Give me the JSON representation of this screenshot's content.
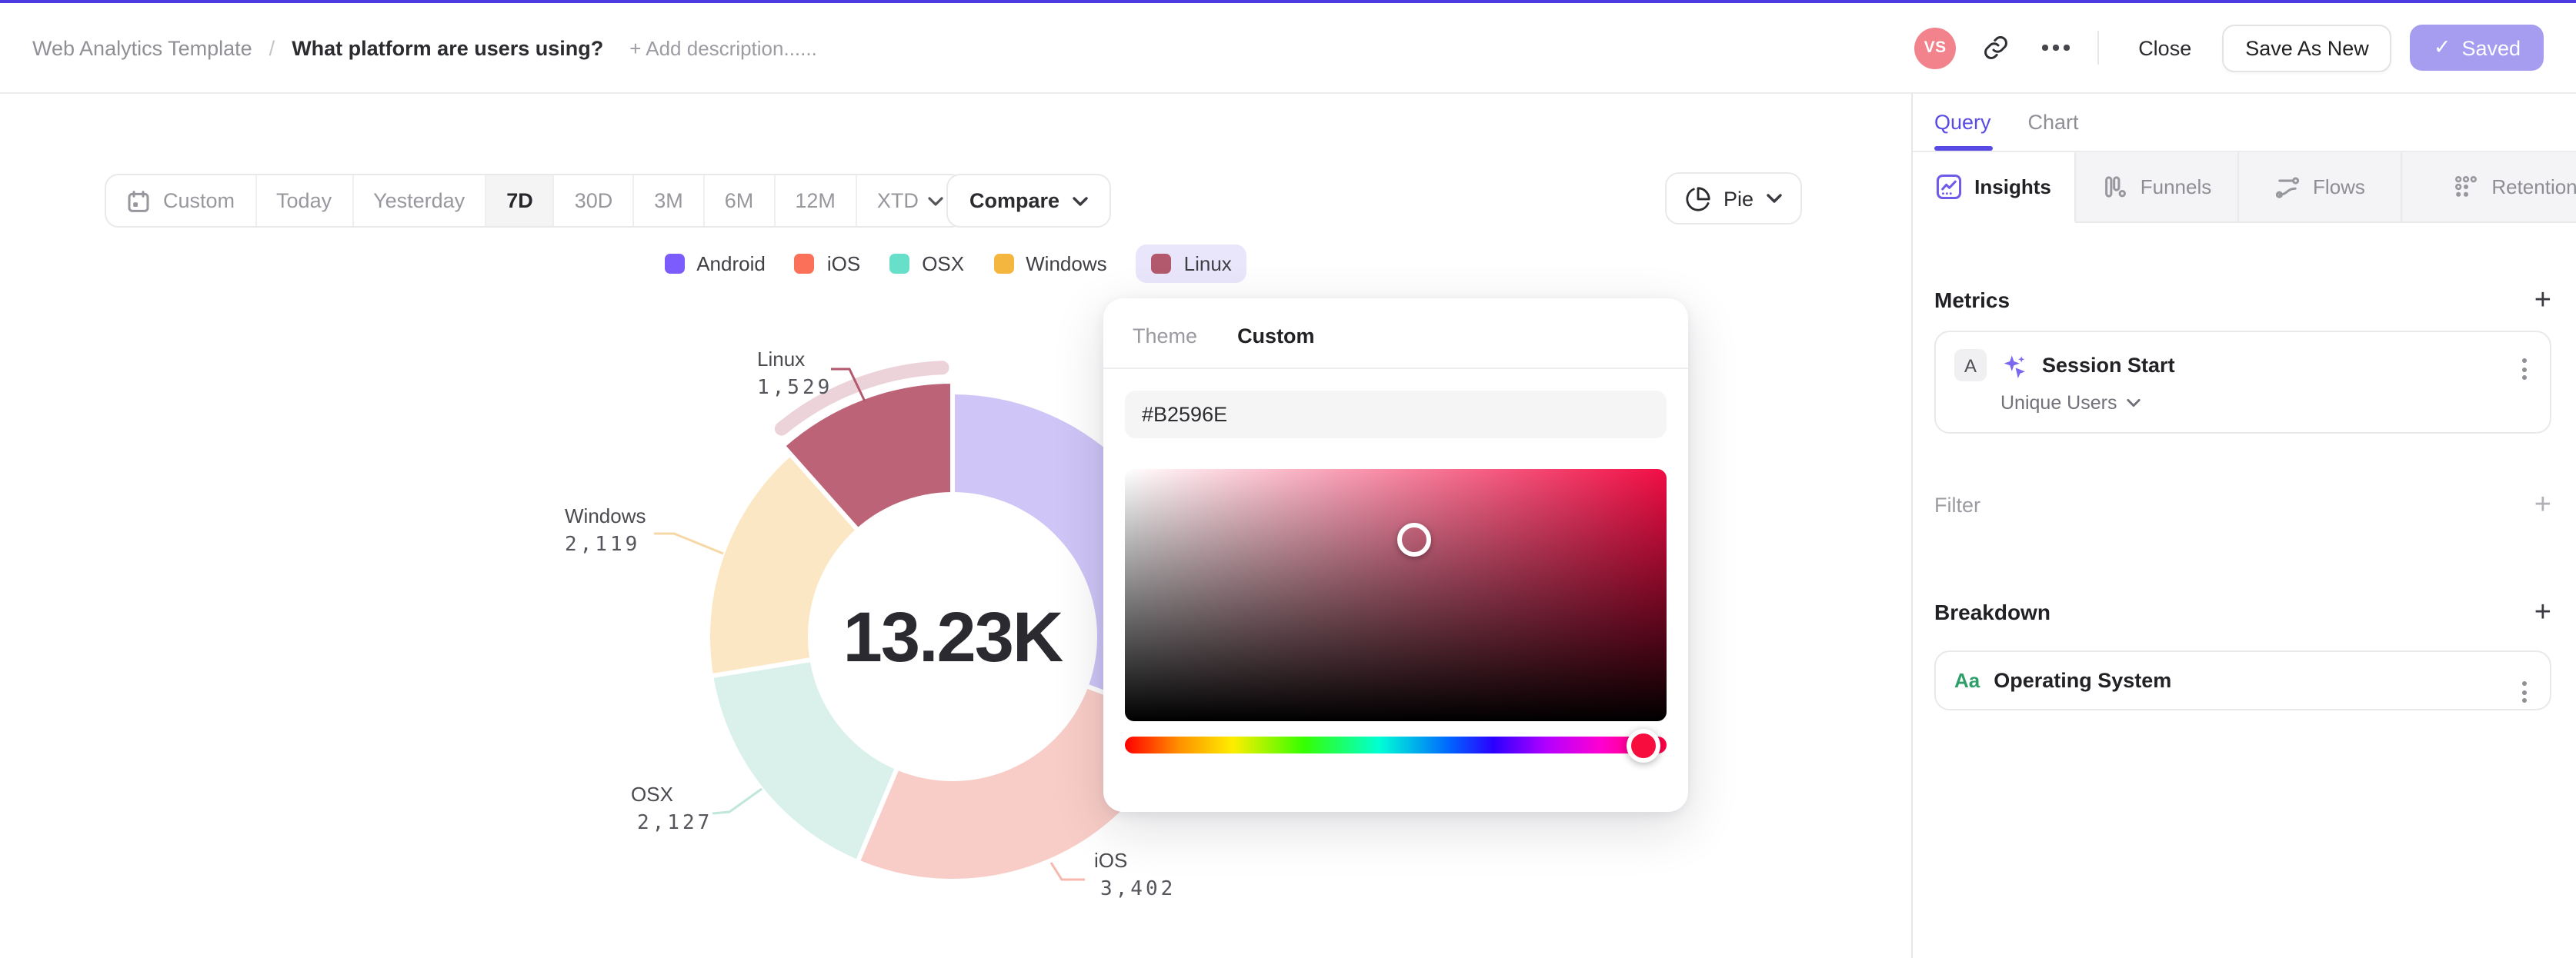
{
  "header": {
    "breadcrumb_root": "Web Analytics Template",
    "breadcrumb_separator": "/",
    "title": "What platform are users using?",
    "add_description": "+ Add description......",
    "avatar_initials": "VS",
    "close_label": "Close",
    "save_as_new_label": "Save As New",
    "saved_check": "✓",
    "saved_label": "Saved",
    "accent_color": "#4b3be0"
  },
  "toolbar": {
    "date_ranges": [
      "Custom",
      "Today",
      "Yesterday",
      "7D",
      "30D",
      "3M",
      "6M",
      "12M",
      "XTD"
    ],
    "selected_range": "7D",
    "compare_label": "Compare",
    "chart_type_label": "Pie"
  },
  "chart_data": {
    "type": "pie",
    "title": "What platform are users using?",
    "total_label": "13.23K",
    "total_value": 13230,
    "legend_position": "top",
    "series": [
      {
        "name": "Android",
        "value": 4053,
        "legend_color": "#7c5cfc",
        "slice_color": "#cfc5f7",
        "label_visible": false
      },
      {
        "name": "iOS",
        "value": 3402,
        "legend_color": "#fa7059",
        "slice_color": "#f9cdc7",
        "label_visible": true
      },
      {
        "name": "OSX",
        "value": 2127,
        "legend_color": "#68dfc9",
        "slice_color": "#d9f1ea",
        "label_visible": true
      },
      {
        "name": "Windows",
        "value": 2119,
        "legend_color": "#f4b63f",
        "slice_color": "#fbe7c3",
        "label_visible": true
      },
      {
        "name": "Linux",
        "value": 1529,
        "legend_color": "#b2596e",
        "slice_color": "#bd6377",
        "label_visible": true,
        "selected": true
      }
    ],
    "selected_halo_color": "#ecd3da",
    "callouts": [
      {
        "name": "Linux",
        "value": "1,529"
      },
      {
        "name": "Windows",
        "value": "2,119"
      },
      {
        "name": "OSX",
        "value": "2,127"
      },
      {
        "name": "iOS",
        "value": "3,402"
      }
    ]
  },
  "color_picker": {
    "tabs": [
      "Theme",
      "Custom"
    ],
    "active_tab": "Custom",
    "hex_value": "#B2596E",
    "hue_handle_color": "#f70d3e"
  },
  "sidebar": {
    "tabs": [
      {
        "label": "Query"
      },
      {
        "label": "Chart"
      }
    ],
    "active_tab": "Query",
    "mode_tabs": [
      {
        "label": "Insights"
      },
      {
        "label": "Funnels"
      },
      {
        "label": "Flows"
      },
      {
        "label": "Retention"
      }
    ],
    "active_mode_tab": "Insights",
    "metrics": {
      "title": "Metrics",
      "add_label": "+",
      "card": {
        "badge": "A",
        "event": "Session Start",
        "aggregation": "Unique Users"
      }
    },
    "filter": {
      "title": "Filter",
      "add_label": "+"
    },
    "breakdown": {
      "title": "Breakdown",
      "add_label": "+",
      "card": {
        "badge": "Aa",
        "property": "Operating System"
      }
    }
  }
}
